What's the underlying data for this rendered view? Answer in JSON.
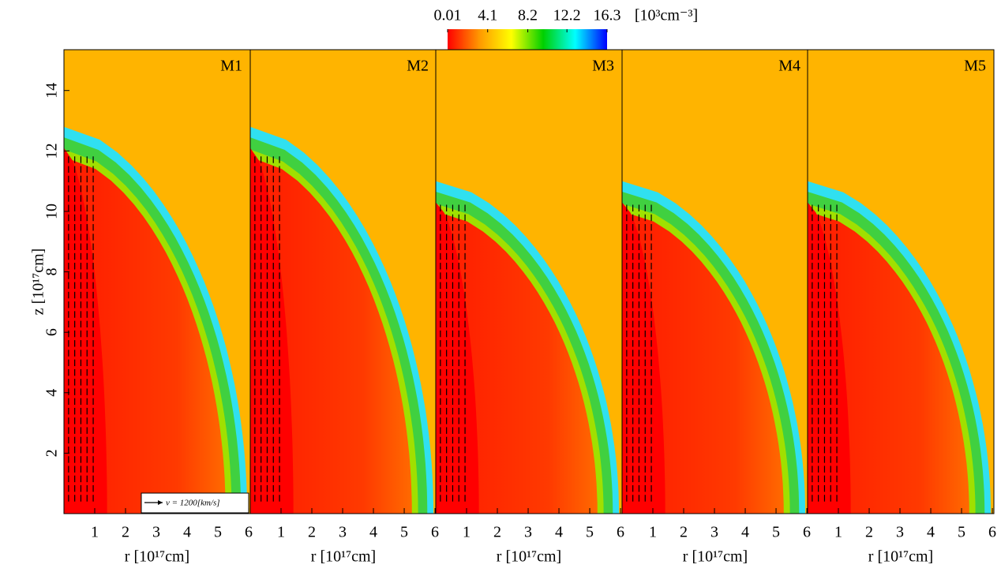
{
  "chart_data": {
    "type": "heatmap",
    "colorbar": {
      "ticks": [
        0.01,
        4.1,
        8.2,
        12.2,
        16.3
      ],
      "lim": [
        0.01,
        16.3
      ],
      "label": "[10³cm⁻³]",
      "colors": [
        "#ff0000",
        "#ff9900",
        "#ffff00",
        "#00d000",
        "#00ffff",
        "#0000ff"
      ]
    },
    "background": "#ffb400",
    "ylabel": "z [10¹⁷cm]",
    "ylim": [
      0,
      15.35
    ],
    "yticks": [
      2,
      4,
      6,
      8,
      10,
      12,
      14
    ],
    "xlabel": "r [10¹⁷cm]",
    "xlim": [
      0,
      6.05
    ],
    "xticks": [
      1,
      2,
      3,
      4,
      5,
      6
    ],
    "panels": [
      "M1",
      "M2",
      "M3",
      "M4",
      "M5"
    ],
    "vector_key": "v = 1200[km/s]"
  }
}
